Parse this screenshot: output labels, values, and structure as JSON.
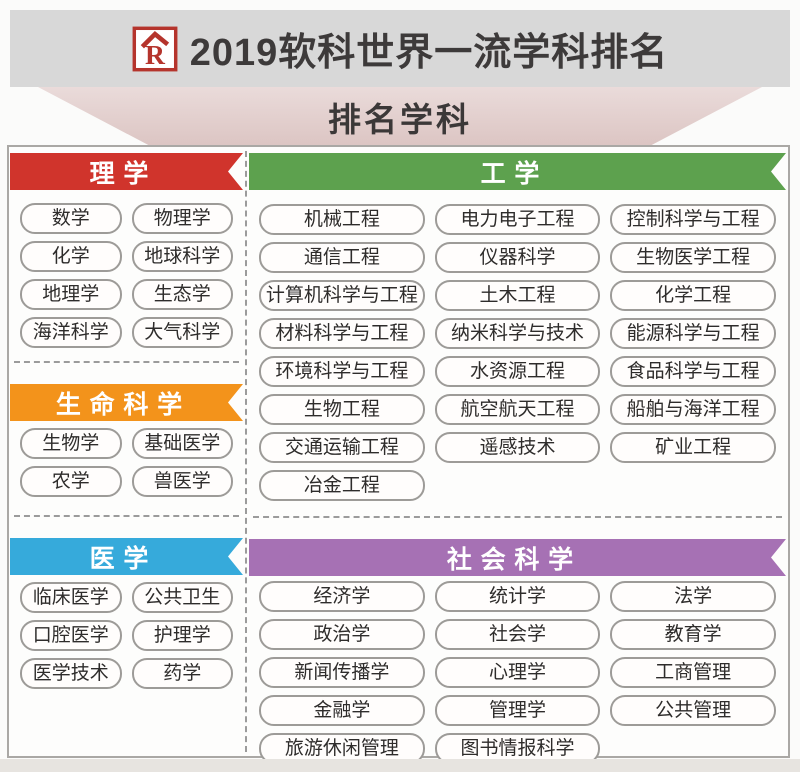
{
  "header": {
    "title": "2019软科世界一流学科排名",
    "subtitle": "排名学科",
    "logo_icon": "ruanke-logo",
    "banner_bg": "#d8d8d8",
    "subtitle_bg": "#e3d0ce"
  },
  "sections": {
    "science": {
      "label": "理学",
      "color": "#d0342c",
      "items": [
        "数学",
        "物理学",
        "化学",
        "地球科学",
        "地理学",
        "生态学",
        "海洋科学",
        "大气科学"
      ]
    },
    "engineering": {
      "label": "工学",
      "color": "#5da14e",
      "items": [
        "机械工程",
        "电力电子工程",
        "控制科学与工程",
        "通信工程",
        "仪器科学",
        "生物医学工程",
        "计算机科学与工程",
        "土木工程",
        "化学工程",
        "材料科学与工程",
        "纳米科学与技术",
        "能源科学与工程",
        "环境科学与工程",
        "水资源工程",
        "食品科学与工程",
        "生物工程",
        "航空航天工程",
        "船舶与海洋工程",
        "交通运输工程",
        "遥感技术",
        "矿业工程",
        "冶金工程"
      ]
    },
    "life": {
      "label": "生命科学",
      "color": "#f3931b",
      "items": [
        "生物学",
        "基础医学",
        "农学",
        "兽医学"
      ]
    },
    "medicine": {
      "label": "医学",
      "color": "#36aadb",
      "items": [
        "临床医学",
        "公共卫生",
        "口腔医学",
        "护理学",
        "医学技术",
        "药学"
      ]
    },
    "social": {
      "label": "社会科学",
      "color": "#a671b4",
      "items": [
        "经济学",
        "统计学",
        "法学",
        "政治学",
        "社会学",
        "教育学",
        "新闻传播学",
        "心理学",
        "工商管理",
        "金融学",
        "管理学",
        "公共管理",
        "旅游休闲管理",
        "图书情报科学"
      ]
    }
  }
}
